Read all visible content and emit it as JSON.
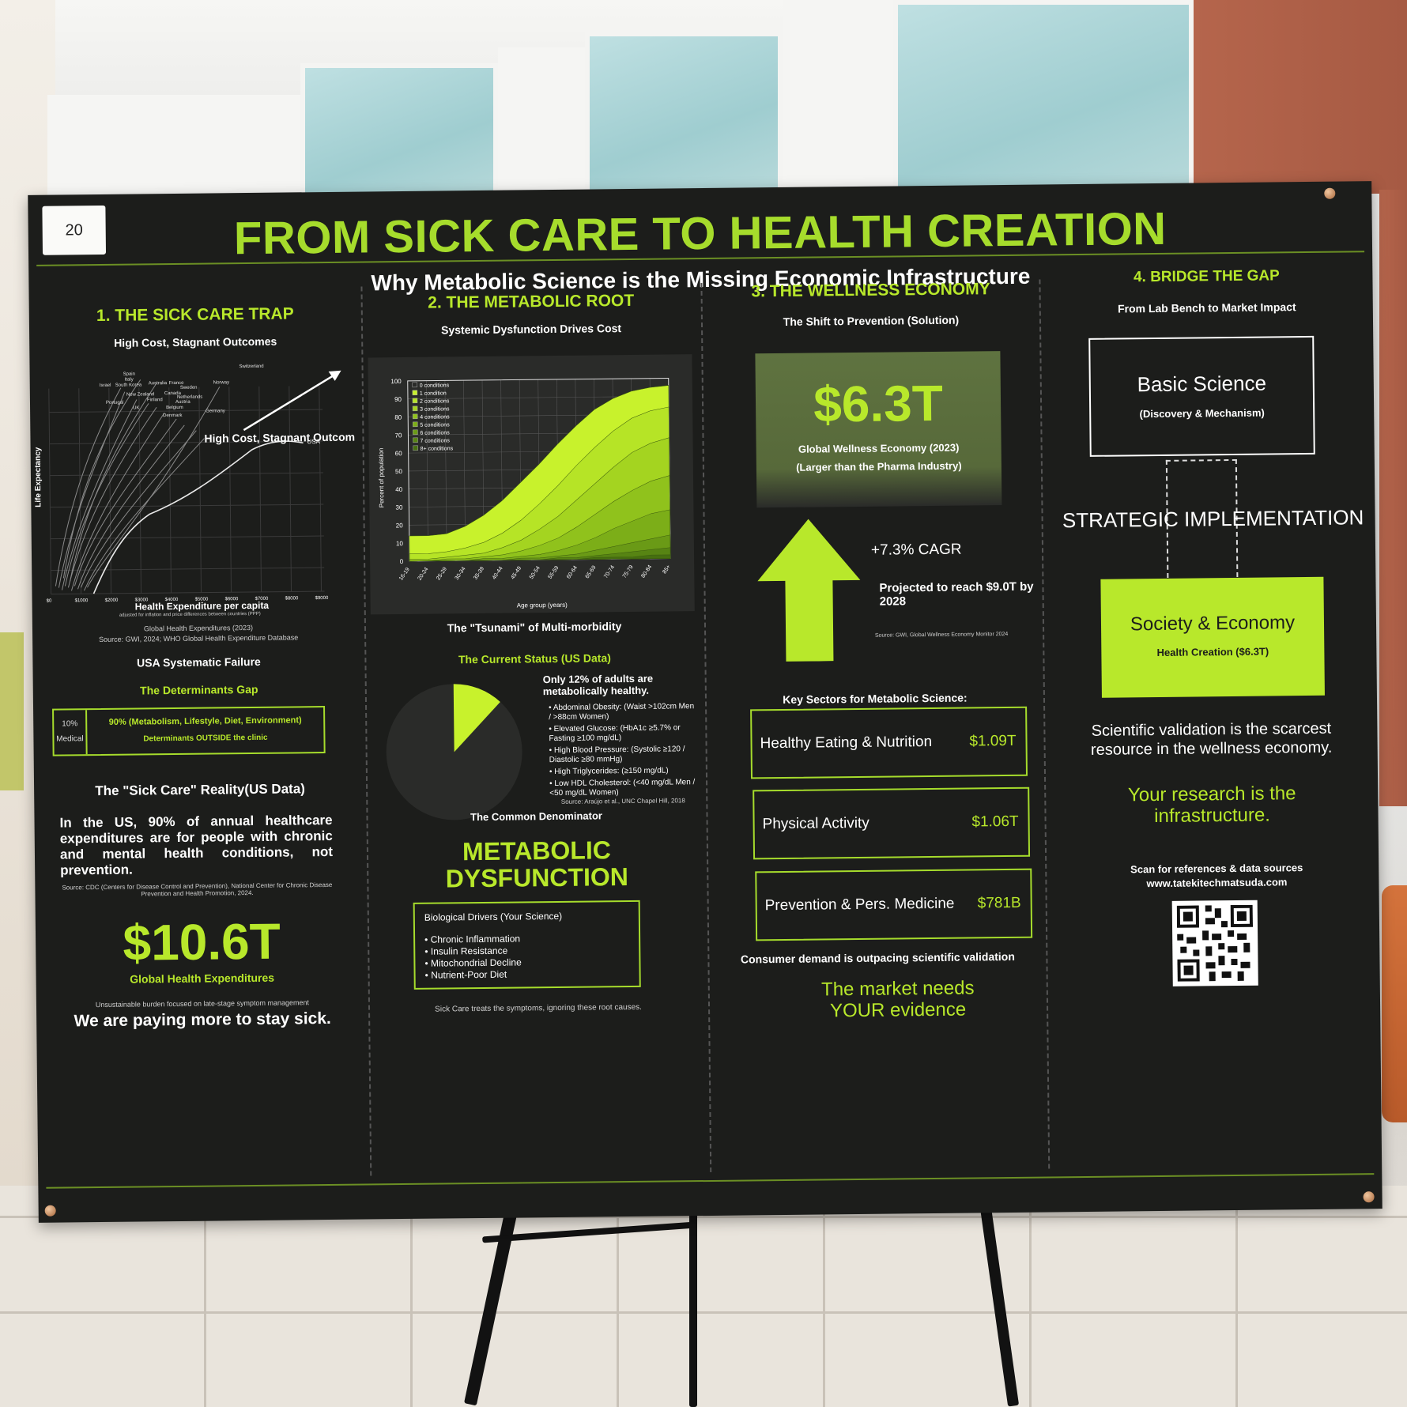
{
  "poster": {
    "tag_number": "20",
    "title": "FROM SICK CARE TO HEALTH CREATION",
    "subtitle": "Why Metabolic Science is the Missing Economic Infrastructure"
  },
  "section1": {
    "heading": "1. THE SICK CARE TRAP",
    "chart_title": "High Cost, Stagnant Outcomes",
    "chart_annotation": "High Cost, Stagnant Outcomes",
    "y_label": "Life Expectancy",
    "x_label": "Health Expenditure per capita",
    "x_note": "adjusted for inflation and price differences between countries (PPP)",
    "x_ticks": [
      "$0",
      "$1000",
      "$2000",
      "$3000",
      "$4000",
      "$5000",
      "$6000",
      "$7000",
      "$8000",
      "$9000",
      "$10,000"
    ],
    "country_labels": [
      "Spain",
      "Italy",
      "Israel",
      "South Korea",
      "Australia",
      "France",
      "Switzerland",
      "Sweden",
      "Norway",
      "New Zealand",
      "Canada",
      "Netherlands",
      "Portugal",
      "Finland",
      "Austria",
      "UK",
      "Belgium",
      "Germany",
      "Denmark",
      "USA"
    ],
    "source1": "Global Health Expenditures (2023)",
    "source2": "Source: GWI, 2024; WHO Global Health Expenditure Database",
    "usa_heading": "USA Systematic Failure",
    "determinants_heading": "The Determinants Gap",
    "medical_pct": "10%",
    "medical_label": "Medical",
    "determinants_text": "90% (Metabolism, Lifestyle, Diet, Environment)",
    "determinants_sub": "Determinants OUTSIDE the clinic",
    "reality_heading": "The \"Sick Care\" Reality(US Data)",
    "reality_text": "In the US, 90% of annual healthcare expenditures are for people with chronic and mental health conditions, not prevention.",
    "reality_source": "Source: CDC (Centers for Disease Control and Prevention), National Center for Chronic Disease Prevention and Health Promotion, 2024.",
    "big_value": "$10.6T",
    "big_label": "Global Health Expenditures",
    "burden_note": "Unsustainable burden focused on late-stage symptom management",
    "closing": "We are paying more to stay sick."
  },
  "section2": {
    "heading": "2. THE METABOLIC ROOT",
    "chart_heading": "Systemic Dysfunction Drives Cost",
    "tsunami": "The \"Tsunami\" of Multi-morbidity",
    "current_status": "The Current Status (US Data)",
    "pie_headline": "Only 12% of adults are metabolically healthy.",
    "criteria": [
      "Abdominal Obesity: (Waist >102cm Men / >88cm Women)",
      "Elevated Glucose: (HbA1c ≥5.7% or Fasting ≥100 mg/dL)",
      "High Blood Pressure: (Systolic ≥120 / Diastolic ≥80 mmHg)",
      "High Triglycerides: (≥150 mg/dL)",
      "Low HDL Cholesterol: (<40 mg/dL Men / <50 mg/dL Women)"
    ],
    "pie_source": "Source: Araújo et al., UNC Chapel Hill, 2018",
    "common_denominator": "The Common Denominator",
    "big_line1": "METABOLIC",
    "big_line2": "DYSFUNCTION",
    "drivers_title": "Biological Drivers (Your Science)",
    "drivers": [
      "Chronic Inflammation",
      "Insulin Resistance",
      "Mitochondrial Decline",
      "Nutrient-Poor Diet"
    ],
    "footer": "Sick Care treats the symptoms, ignoring these root causes."
  },
  "section3": {
    "heading": "3. THE WELLNESS ECONOMY",
    "subheading": "The Shift to Prevention (Solution)",
    "big_value": "$6.3T",
    "big_label": "Global Wellness Economy (2023)",
    "big_note": "(Larger than the Pharma Industry)",
    "cagr": "+7.3% CAGR",
    "projection": "Projected to reach $9.0T by 2028",
    "source": "Source: GWI, Global Wellness Economy Monitor 2024",
    "sectors_heading": "Key Sectors for Metabolic Science:",
    "sectors": [
      {
        "name": "Healthy Eating & Nutrition",
        "value": "$1.09T"
      },
      {
        "name": "Physical Activity",
        "value": "$1.06T"
      },
      {
        "name": "Prevention & Pers. Medicine",
        "value": "$781B"
      }
    ],
    "demand_note": "Consumer demand is outpacing scientific validation",
    "closing": "The market needs YOUR evidence"
  },
  "section4": {
    "heading": "4. BRIDGE THE GAP",
    "subheading": "From Lab Bench to Market Impact",
    "box1_title": "Basic Science",
    "box1_sub": "(Discovery & Mechanism)",
    "bridge_label": "STRATEGIC IMPLEMENTATION",
    "box2_title": "Society & Economy",
    "box2_sub": "Health Creation ($6.3T)",
    "validation": "Scientific validation is the scarcest resource in the wellness economy.",
    "closing": "Your research is the infrastructure.",
    "scan_text": "Scan for references & data sources",
    "url": "www.tatekitechmatsuda.com"
  },
  "chart_data": [
    {
      "type": "area",
      "title": "",
      "xlabel": "Age group (years)",
      "ylabel": "Percent of population",
      "ylim": [
        0,
        100
      ],
      "categories": [
        "16-19",
        "20-24",
        "25-29",
        "30-34",
        "35-39",
        "40-44",
        "45-49",
        "50-54",
        "55-59",
        "60-64",
        "65-69",
        "70-74",
        "75-79",
        "80-84",
        "85+"
      ],
      "y_ticks": [
        "0",
        "10",
        "20",
        "30",
        "40",
        "50",
        "60",
        "70",
        "80",
        "90",
        "100"
      ],
      "legend": [
        "0 conditions",
        "1 condition",
        "2 conditions",
        "3 conditions",
        "4 conditions",
        "5 conditions",
        "6 conditions",
        "7 conditions",
        "8+ conditions"
      ],
      "legend_position": "top-left",
      "series": [
        {
          "name": "1 condition",
          "values": [
            14,
            14,
            15,
            19,
            25,
            33,
            43,
            53,
            64,
            74,
            83,
            89,
            93,
            95,
            96
          ]
        },
        {
          "name": "2 conditions",
          "values": [
            4,
            4,
            5,
            7,
            10,
            15,
            22,
            31,
            41,
            52,
            62,
            71,
            78,
            82,
            84
          ]
        },
        {
          "name": "3 conditions",
          "values": [
            1,
            1,
            2,
            3,
            4,
            7,
            11,
            17,
            24,
            33,
            42,
            51,
            59,
            64,
            67
          ]
        },
        {
          "name": "4 conditions",
          "values": [
            0,
            0,
            1,
            1,
            2,
            3,
            5,
            8,
            12,
            18,
            25,
            32,
            38,
            43,
            46
          ]
        },
        {
          "name": "5 conditions",
          "values": [
            0,
            0,
            0,
            0,
            1,
            1,
            2,
            3,
            5,
            8,
            12,
            17,
            21,
            25,
            27
          ]
        },
        {
          "name": "6 conditions",
          "values": [
            0,
            0,
            0,
            0,
            0,
            0,
            1,
            1,
            2,
            3,
            5,
            7,
            9,
            11,
            13
          ]
        },
        {
          "name": "7 conditions",
          "values": [
            0,
            0,
            0,
            0,
            0,
            0,
            0,
            0,
            1,
            1,
            2,
            3,
            4,
            5,
            6
          ]
        },
        {
          "name": "8+ conditions",
          "values": [
            0,
            0,
            0,
            0,
            0,
            0,
            0,
            0,
            0,
            0,
            1,
            1,
            1,
            2,
            2
          ]
        }
      ]
    },
    {
      "type": "pie",
      "title": "",
      "slices": [
        {
          "label": "Metabolically healthy",
          "value": 12,
          "color": "#c8f22c"
        },
        {
          "label": "",
          "value": 88,
          "color": "#2a2b29"
        }
      ]
    }
  ],
  "colors": {
    "accent": "#b8e82b",
    "poster_bg": "#1c1d1b",
    "panel_bg": "#5c6f3a"
  },
  "icons": {
    "arrow_up": "up-arrow-icon",
    "qr": "qr-code-icon"
  }
}
